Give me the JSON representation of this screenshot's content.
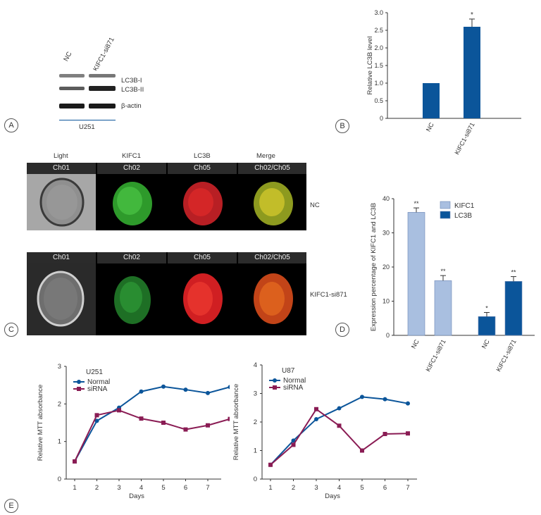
{
  "panel_labels": {
    "a": "A",
    "b": "B",
    "c": "C",
    "d": "D",
    "e": "E"
  },
  "western_blot": {
    "lanes": [
      "NC",
      "KIFC1-si871"
    ],
    "bands": [
      "LC3B-I",
      "LC3B-II",
      "β-actin"
    ],
    "cell_line": "U251"
  },
  "imaging": {
    "column_titles": [
      "Light",
      "KIFC1",
      "LC3B",
      "Merge"
    ],
    "channels": [
      "Ch01",
      "Ch02",
      "Ch05",
      "Ch02/Ch05"
    ],
    "rows": [
      {
        "label": "NC",
        "green": "#3fbf3a",
        "red": "#d8262b",
        "merge": "#b8b52a"
      },
      {
        "label": "KIFC1-si871",
        "green": "#2d8a36",
        "red": "#e02a2a",
        "merge": "#d85a1e"
      }
    ]
  },
  "chart_data": [
    {
      "id": "B",
      "type": "bar",
      "categories": [
        "NC",
        "KIFC1-si871"
      ],
      "values": [
        1.0,
        2.6
      ],
      "errors": [
        0,
        0.22
      ],
      "significance": [
        "",
        "*"
      ],
      "ylabel": "Relative LC3B level",
      "ylim": [
        0,
        3.0
      ],
      "yticks": [
        "0",
        "0.5",
        "1.0",
        "1.5",
        "2.0",
        "2.5",
        "3.0"
      ],
      "color": "#0b559a"
    },
    {
      "id": "D",
      "type": "bar",
      "categories": [
        "NC",
        "KIFC1-si871",
        "NC",
        "KIFC1-si871"
      ],
      "values": [
        36,
        16,
        5.5,
        15.8
      ],
      "errors": [
        1.3,
        1.5,
        1.2,
        1.4
      ],
      "series_of_bar": [
        "KIFC1",
        "KIFC1",
        "LC3B",
        "LC3B"
      ],
      "significance": [
        "**",
        "**",
        "*",
        "**"
      ],
      "legend": [
        {
          "name": "KIFC1",
          "color": "#a9bfe0"
        },
        {
          "name": "LC3B",
          "color": "#0b559a"
        }
      ],
      "ylabel": "Expression percentage of KIFC1 and LC3B",
      "ylim": [
        0,
        40
      ],
      "yticks": [
        "0",
        "10",
        "20",
        "30",
        "40"
      ]
    },
    {
      "id": "E1",
      "type": "line",
      "title": "U251",
      "x": [
        1,
        2,
        3,
        4,
        5,
        6,
        7,
        8
      ],
      "xticks": [
        "1",
        "2",
        "3",
        "4",
        "5",
        "6",
        "7"
      ],
      "series": [
        {
          "name": "Normal",
          "color": "#0b559a",
          "values": [
            0.47,
            1.55,
            1.9,
            2.33,
            2.46,
            2.38,
            2.29,
            2.45
          ]
        },
        {
          "name": "siRNA",
          "color": "#8a1c54",
          "values": [
            0.47,
            1.7,
            1.83,
            1.61,
            1.5,
            1.32,
            1.43,
            1.6
          ]
        }
      ],
      "xlabel": "Days",
      "ylabel": "Relative MTT absorbance",
      "ylim": [
        0,
        3
      ],
      "yticks": [
        "0",
        "1",
        "2",
        "3"
      ]
    },
    {
      "id": "E2",
      "type": "line",
      "title": "U87",
      "x": [
        1,
        2,
        3,
        4,
        5,
        6,
        7
      ],
      "xticks": [
        "1",
        "2",
        "3",
        "4",
        "5",
        "6",
        "7"
      ],
      "series": [
        {
          "name": "Normal",
          "color": "#0b559a",
          "values": [
            0.5,
            1.35,
            2.1,
            2.48,
            2.88,
            2.8,
            2.65
          ]
        },
        {
          "name": "siRNA",
          "color": "#8a1c54",
          "values": [
            0.5,
            1.2,
            2.45,
            1.87,
            1.0,
            1.58,
            1.6
          ]
        }
      ],
      "xlabel": "Days",
      "ylabel": "Relative MTT absorbance",
      "ylim": [
        0,
        4
      ],
      "yticks": [
        "0",
        "1",
        "2",
        "3",
        "4"
      ]
    }
  ]
}
